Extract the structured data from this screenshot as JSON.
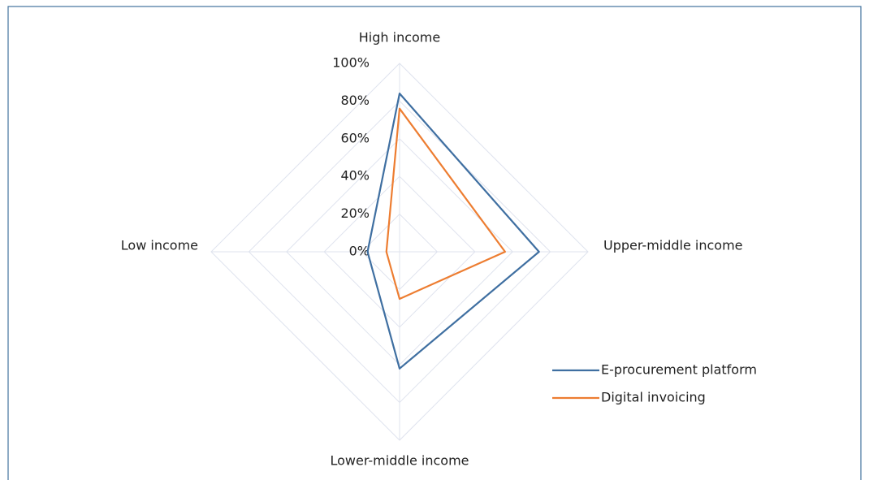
{
  "chart_data": {
    "type": "radar",
    "categories": [
      "High income",
      "Upper-middle income",
      "Lower-middle income",
      "Low income"
    ],
    "series": [
      {
        "name": "E-procurement platform",
        "color": "#3f6fa1",
        "values": [
          84,
          74,
          62,
          17
        ]
      },
      {
        "name": "Digital invoicing",
        "color": "#ed7d31",
        "values": [
          76,
          56,
          25,
          7
        ]
      }
    ],
    "ylim": [
      0,
      100
    ],
    "yticks": [
      {
        "value": 0,
        "label": "0%"
      },
      {
        "value": 20,
        "label": "20%"
      },
      {
        "value": 40,
        "label": "40%"
      },
      {
        "value": 60,
        "label": "60%"
      },
      {
        "value": 80,
        "label": "80%"
      },
      {
        "value": 100,
        "label": "100%"
      }
    ],
    "grid": true,
    "legend": "lower right"
  }
}
